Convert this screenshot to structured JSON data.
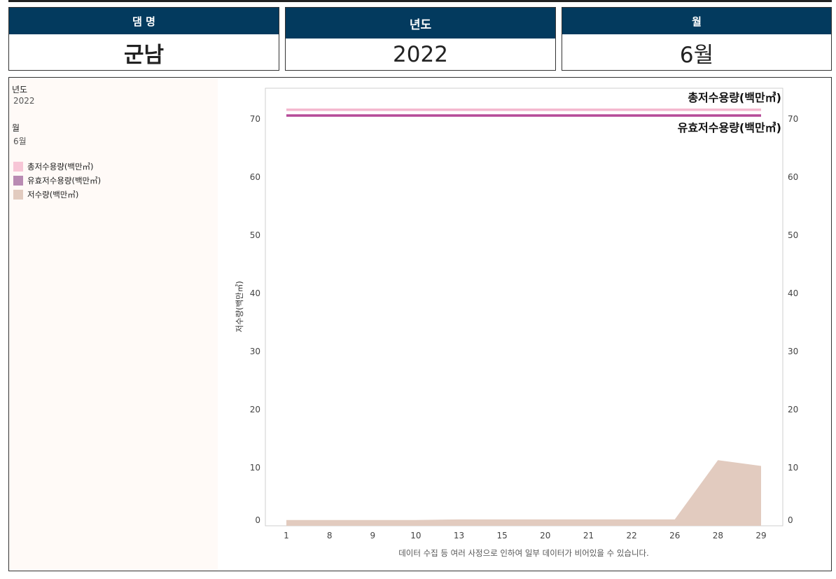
{
  "cards": [
    {
      "label": "댐 명",
      "value": "군남"
    },
    {
      "label": "년도",
      "value": "2022"
    },
    {
      "label": "월",
      "value": "6월"
    }
  ],
  "filters": {
    "year_label": "년도",
    "year_value": "2022",
    "month_label": "월",
    "month_value": "6월"
  },
  "legend": [
    {
      "label": "총저수용량(백만㎥)",
      "color": "#f7c6d6"
    },
    {
      "label": "유효저수용량(백만㎥)",
      "color": "#b98bb3"
    },
    {
      "label": "저수량(백만㎥)",
      "color": "#e2cbbf"
    }
  ],
  "chart_data": {
    "type": "area",
    "x": [
      "1",
      "8",
      "9",
      "10",
      "13",
      "15",
      "20",
      "21",
      "22",
      "26",
      "28",
      "29"
    ],
    "ylabel": "저수량(백만㎥)",
    "ylim": [
      0,
      75
    ],
    "yticks": [
      0,
      10,
      20,
      30,
      40,
      50,
      60,
      70
    ],
    "footnote": "데이터 수집 등 여러 사정으로 인하여 일부 데이터가 비어있을 수 있습니다.",
    "series": [
      {
        "name": "저수량(백만㎥)",
        "type": "area",
        "color": "#e2cbbf",
        "values": [
          1.0,
          1.0,
          1.0,
          1.0,
          1.1,
          1.1,
          1.1,
          1.1,
          1.1,
          1.1,
          11.3,
          10.3
        ]
      },
      {
        "name": "총저수용량(백만㎥)",
        "type": "line",
        "color": "#f4b8cf",
        "value": 71.6
      },
      {
        "name": "유효저수용량(백만㎥)",
        "type": "line",
        "color": "#b54a98",
        "value": 70.6
      }
    ]
  }
}
